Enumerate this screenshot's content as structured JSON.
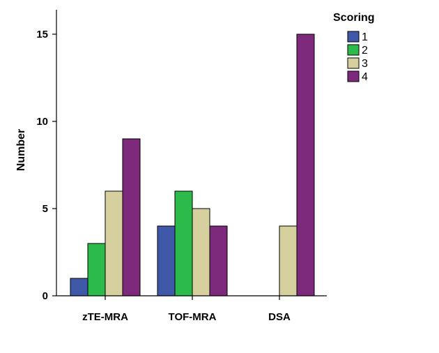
{
  "chart_data": {
    "type": "bar",
    "categories": [
      "zTE-MRA",
      "TOF-MRA",
      "DSA"
    ],
    "series": [
      {
        "name": "1",
        "values": [
          1,
          4,
          0
        ],
        "color": "#3f59a8"
      },
      {
        "name": "2",
        "values": [
          3,
          6,
          0
        ],
        "color": "#2cba4a"
      },
      {
        "name": "3",
        "values": [
          6,
          5,
          4
        ],
        "color": "#d5d09e"
      },
      {
        "name": "4",
        "values": [
          9,
          4,
          15
        ],
        "color": "#7e2a7c"
      }
    ],
    "ylabel": "Number",
    "xlabel": "",
    "ylim": [
      0,
      16
    ],
    "yticks": [
      0,
      5,
      10,
      15
    ],
    "legend_title": "Scoring",
    "legend_position": "top-right",
    "grid": false
  }
}
